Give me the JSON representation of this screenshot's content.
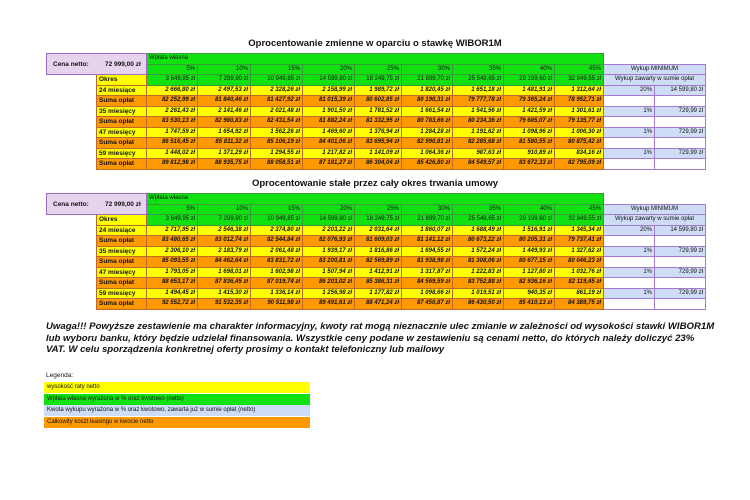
{
  "tables": [
    {
      "title": "Oprocentowanie zmienne w oparciu o stawkę WIBOR1M",
      "cena_label": "Cena netto:",
      "cena_value": "72 999,00 zł",
      "header": "Wpłata własna",
      "percents": [
        "5%",
        "10%",
        "15%",
        "20%",
        "25%",
        "30%",
        "35%",
        "40%",
        "45%"
      ],
      "okres_label": "Okres",
      "downpayments": [
        "3 649,95 zł",
        "7 299,90 zł",
        "10 949,85 zł",
        "14 599,80 zł",
        "18 249,75 zł",
        "21 899,70 zł",
        "25 549,65 zł",
        "29 199,60 zł",
        "32 849,55 zł"
      ],
      "wykup_header": "Wykup MINIMUM",
      "wykup_note": "Wykup zawarty w sumie opłat",
      "rows": [
        {
          "label": "24 miesiące",
          "type": "rate",
          "values": [
            "2 666,80 zł",
            "2 497,53 zł",
            "2 328,26 zł",
            "2 158,99 zł",
            "1 989,72 zł",
            "1 820,45 zł",
            "1 651,18 zł",
            "1 481,91 zł",
            "1 312,64 zł"
          ],
          "wykup_pct": "20%",
          "wykup_amount": "14 599,80 zł"
        },
        {
          "label": "Suma opłat",
          "type": "sum",
          "values": [
            "82 252,99 zł",
            "81 840,46 zł",
            "81 427,92 zł",
            "81 015,39 zł",
            "80 602,85 zł",
            "80 190,31 zł",
            "79 777,78 zł",
            "79 365,24 zł",
            "78 952,71 zł"
          ]
        },
        {
          "label": "35 miesięcy",
          "type": "rate",
          "values": [
            "2 261,43 zł",
            "2 141,46 zł",
            "2 021,48 zł",
            "1 901,50 zł",
            "1 781,52 zł",
            "1 661,54 zł",
            "1 541,56 zł",
            "1 421,59 zł",
            "1 301,61 zł"
          ],
          "wykup_pct": "1%",
          "wykup_amount": "729,99 zł"
        },
        {
          "label": "Suma opłat",
          "type": "sum",
          "values": [
            "83 530,13 zł",
            "82 980,83 zł",
            "82 431,54 zł",
            "81 882,24 zł",
            "81 332,95 zł",
            "80 783,66 zł",
            "80 234,36 zł",
            "79 685,07 zł",
            "79 135,77 zł"
          ]
        },
        {
          "label": "47 miesięcy",
          "type": "rate",
          "values": [
            "1 747,59 zł",
            "1 654,92 zł",
            "1 562,26 zł",
            "1 469,60 zł",
            "1 376,94 zł",
            "1 284,28 zł",
            "1 191,62 zł",
            "1 098,96 zł",
            "1 006,30 zł"
          ],
          "wykup_pct": "1%",
          "wykup_amount": "729,99 zł"
        },
        {
          "label": "Suma opłat",
          "type": "sum",
          "values": [
            "86 516,45 zł",
            "85 811,32 zł",
            "85 106,19 zł",
            "84 401,06 zł",
            "83 695,94 zł",
            "82 990,81 zł",
            "82 285,68 zł",
            "81 580,55 zł",
            "80 875,42 zł"
          ]
        },
        {
          "label": "59 miesięcy",
          "type": "rate",
          "values": [
            "1 448,02 zł",
            "1 371,29 zł",
            "1 294,55 zł",
            "1 217,82 zł",
            "1 141,09 zł",
            "1 064,36 zł",
            "987,63 zł",
            "910,89 zł",
            "834,16 zł"
          ],
          "wykup_pct": "1%",
          "wykup_amount": "729,99 zł"
        },
        {
          "label": "Suma opłat",
          "type": "sum",
          "values": [
            "89 812,98 zł",
            "88 935,75 zł",
            "88 058,51 zł",
            "87 181,27 zł",
            "86 304,04 zł",
            "85 426,80 zł",
            "84 549,57 zł",
            "83 672,33 zł",
            "82 795,09 zł"
          ]
        }
      ]
    },
    {
      "title": "Oprocentowanie stałe przez cały okres trwania umowy",
      "cena_label": "Cena netto:",
      "cena_value": "72 999,00 zł",
      "header": "Wpłata własna",
      "percents": [
        "5%",
        "10%",
        "15%",
        "20%",
        "25%",
        "30%",
        "35%",
        "40%",
        "45%"
      ],
      "okres_label": "Okres",
      "downpayments": [
        "3 649,95 zł",
        "7 299,90 zł",
        "10 949,85 zł",
        "14 599,80 zł",
        "18 249,75 zł",
        "21 899,70 zł",
        "25 549,65 zł",
        "29 199,60 zł",
        "32 849,55 zł"
      ],
      "wykup_header": "Wykup MINIMUM",
      "wykup_note": "Wykup zawarty w sumie opłat",
      "rows": [
        {
          "label": "24 miesiące",
          "type": "rate",
          "values": [
            "2 717,95 zł",
            "2 546,38 zł",
            "2 374,80 zł",
            "2 203,22 zł",
            "2 031,64 zł",
            "1 860,07 zł",
            "1 688,49 zł",
            "1 516,91 zł",
            "1 345,34 zł"
          ],
          "wykup_pct": "20%",
          "wykup_amount": "14 599,80 zł"
        },
        {
          "label": "Suma opłat",
          "type": "sum",
          "values": [
            "83 480,65 zł",
            "83 012,74 zł",
            "82 544,84 zł",
            "82 076,93 zł",
            "81 609,03 zł",
            "81 141,12 zł",
            "80 673,22 zł",
            "80 205,31 zł",
            "79 737,41 zł"
          ]
        },
        {
          "label": "35 miesięcy",
          "type": "rate",
          "values": [
            "2 306,10 zł",
            "2 183,79 zł",
            "2 061,48 zł",
            "1 939,17 zł",
            "1 816,86 zł",
            "1 694,55 zł",
            "1 572,24 zł",
            "1 449,93 zł",
            "1 327,62 zł"
          ],
          "wykup_pct": "1%",
          "wykup_amount": "729,99 zł"
        },
        {
          "label": "Suma opłat",
          "type": "sum",
          "values": [
            "85 093,55 zł",
            "84 462,64 zł",
            "83 831,72 zł",
            "83 200,81 zł",
            "82 569,89 zł",
            "81 938,98 zł",
            "81 308,06 zł",
            "80 677,15 zł",
            "80 046,23 zł"
          ]
        },
        {
          "label": "47 miesięcy",
          "type": "rate",
          "values": [
            "1 793,05 zł",
            "1 698,01 zł",
            "1 602,98 zł",
            "1 507,94 zł",
            "1 412,91 zł",
            "1 317,87 zł",
            "1 222,83 zł",
            "1 127,80 zł",
            "1 032,76 zł"
          ],
          "wykup_pct": "1%",
          "wykup_amount": "729,99 zł"
        },
        {
          "label": "Suma opłat",
          "type": "sum",
          "values": [
            "88 653,17 zł",
            "87 836,45 zł",
            "87 019,74 zł",
            "86 203,02 zł",
            "85 386,31 zł",
            "84 569,59 zł",
            "83 752,88 zł",
            "82 936,16 zł",
            "82 119,45 zł"
          ]
        },
        {
          "label": "59 miesięcy",
          "type": "rate",
          "values": [
            "1 494,45 zł",
            "1 415,30 zł",
            "1 336,14 zł",
            "1 256,98 zł",
            "1 177,82 zł",
            "1 098,66 zł",
            "1 019,51 zł",
            "940,35 zł",
            "861,19 zł"
          ],
          "wykup_pct": "1%",
          "wykup_amount": "729,99 zł"
        },
        {
          "label": "Suma opłat",
          "type": "sum",
          "values": [
            "92 552,72 zł",
            "91 532,35 zł",
            "90 511,98 zł",
            "89 491,61 zł",
            "88 471,24 zł",
            "87 450,87 zł",
            "86 430,50 zł",
            "85 410,13 zł",
            "84 389,75 zł"
          ]
        }
      ]
    }
  ],
  "note": "Uwaga!!! Powyższe zestawienie ma charakter informacyjny, kwoty rat mogą nieznacznie ulec zmianie w zależności od wysokości stawki WIBOR1M lub wyboru banku, który będzie udzielał finansowania. Wszystkie ceny podane w zestawieniu są cenami netto, do których należy doliczyć 23% VAT. W celu sporządzenia konkretnej oferty prosimy o kontakt telefoniczny lub mailowy",
  "legend": {
    "title": "Legenda:",
    "items": [
      {
        "label": "wysokość raty netto",
        "color": "#ffff00"
      },
      {
        "label": "Wpłata własna wyrażona w % oraz kwotowo (netto)",
        "color": "#11e011"
      },
      {
        "label": "Kwota wykupu wyrażona w % oraz kwotowo, zawarta już w sumie opłat (netto)",
        "color": "#cfdcf5"
      },
      {
        "label": "Całkowity koszt leasingu w kwocie netto",
        "color": "#ff9900"
      }
    ]
  }
}
